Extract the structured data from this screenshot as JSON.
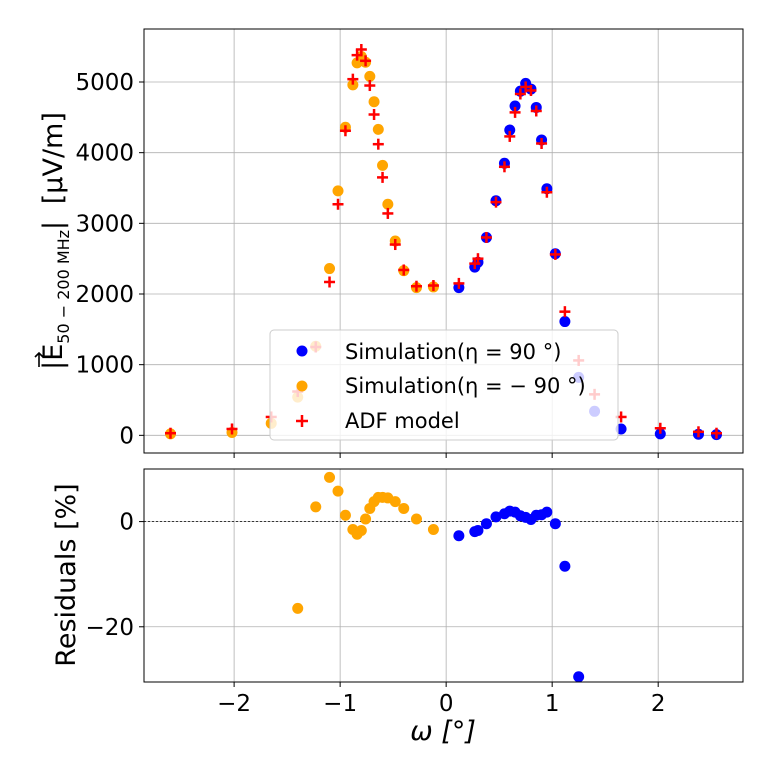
{
  "chart_data": [
    {
      "type": "scatter",
      "panel": "main",
      "xlabel": "ω [°]",
      "ylabel": "|E⃗50 − 200 MHz| [μV/m]",
      "ylabel_parts": {
        "open": "|",
        "symbol": "E",
        "subscript": "50 − 200 MHz",
        "close": "|",
        "unit": "[μV/m]"
      },
      "xlim": [
        -2.85,
        2.8
      ],
      "ylim": [
        -250,
        5750
      ],
      "xticks": [
        -2,
        -1,
        0,
        1,
        2
      ],
      "xtick_labels": [
        "−2",
        "−1",
        "0",
        "1",
        "2"
      ],
      "yticks": [
        0,
        1000,
        2000,
        3000,
        4000,
        5000
      ],
      "ytick_labels": [
        "0",
        "1000",
        "2000",
        "3000",
        "4000",
        "5000"
      ],
      "grid": true,
      "legend_position": "center-right",
      "series": [
        {
          "name": "Simulation(η = 90°)",
          "legend_label": "Simulation(η = 90 °)",
          "marker": "circle",
          "color": "#0000ff",
          "x": [
            0.12,
            0.27,
            0.3,
            0.38,
            0.47,
            0.55,
            0.6,
            0.65,
            0.7,
            0.75,
            0.8,
            0.85,
            0.9,
            0.95,
            1.03,
            1.12,
            1.25,
            1.4,
            1.65,
            2.02,
            2.38,
            2.55
          ],
          "y": [
            2090,
            2380,
            2450,
            2800,
            3320,
            3850,
            4320,
            4660,
            4870,
            4980,
            4900,
            4640,
            4180,
            3490,
            2570,
            1610,
            820,
            340,
            90,
            20,
            15,
            10
          ]
        },
        {
          "name": "Simulation(η = −90°)",
          "legend_label": "Simulation(η = − 90 °)",
          "marker": "circle",
          "color": "#ffa500",
          "x": [
            -2.6,
            -2.02,
            -1.65,
            -1.4,
            -1.23,
            -1.1,
            -1.02,
            -0.95,
            -0.88,
            -0.84,
            -0.8,
            -0.76,
            -0.72,
            -0.68,
            -0.64,
            -0.6,
            -0.55,
            -0.48,
            -0.4,
            -0.28,
            -0.12
          ],
          "y": [
            20,
            40,
            170,
            540,
            1260,
            2360,
            3460,
            4360,
            4960,
            5270,
            5360,
            5280,
            5080,
            4720,
            4330,
            3820,
            3270,
            2750,
            2330,
            2090,
            2100
          ]
        },
        {
          "name": "ADF model",
          "legend_label": "ADF model",
          "marker": "plus",
          "color": "#ff0000",
          "x": [
            -2.6,
            -2.02,
            -1.65,
            -1.4,
            -1.23,
            -1.1,
            -1.02,
            -0.95,
            -0.88,
            -0.84,
            -0.8,
            -0.76,
            -0.72,
            -0.68,
            -0.64,
            -0.6,
            -0.55,
            -0.48,
            -0.4,
            -0.28,
            -0.12,
            0.12,
            0.27,
            0.3,
            0.38,
            0.47,
            0.55,
            0.6,
            0.65,
            0.7,
            0.75,
            0.8,
            0.85,
            0.9,
            0.95,
            1.03,
            1.12,
            1.25,
            1.4,
            1.65,
            2.02,
            2.38,
            2.55
          ],
          "y": [
            30,
            90,
            260,
            620,
            1250,
            2170,
            3270,
            4310,
            5040,
            5380,
            5460,
            5300,
            4950,
            4540,
            4120,
            3650,
            3140,
            2700,
            2340,
            2110,
            2120,
            2150,
            2430,
            2500,
            2800,
            3300,
            3800,
            4230,
            4570,
            4830,
            4930,
            4880,
            4590,
            4130,
            3440,
            2560,
            1750,
            1060,
            580,
            260,
            100,
            50,
            30
          ]
        }
      ]
    },
    {
      "type": "scatter",
      "panel": "residuals",
      "xlabel": "ω [°]",
      "ylabel": "Residuals [%]",
      "xlim": [
        -2.85,
        2.8
      ],
      "ylim": [
        -30.5,
        10
      ],
      "xticks": [
        -2,
        -1,
        0,
        1,
        2
      ],
      "xtick_labels": [
        "−2",
        "−1",
        "0",
        "1",
        "2"
      ],
      "yticks": [
        -20,
        0
      ],
      "ytick_labels": [
        "−20",
        "0"
      ],
      "grid": true,
      "reference_line_y": 0,
      "series": [
        {
          "name": "Simulation(η = 90°)",
          "marker": "circle",
          "color": "#0000ff",
          "x": [
            0.12,
            0.27,
            0.3,
            0.38,
            0.47,
            0.55,
            0.6,
            0.65,
            0.7,
            0.75,
            0.8,
            0.85,
            0.9,
            0.95,
            1.03,
            1.12,
            1.25
          ],
          "y": [
            -2.7,
            -1.9,
            -1.7,
            -0.4,
            0.9,
            1.5,
            2.0,
            1.8,
            1.1,
            0.8,
            0.4,
            1.2,
            1.3,
            1.8,
            -0.4,
            -8.5,
            -29.5
          ]
        },
        {
          "name": "Simulation(η = −90°)",
          "marker": "circle",
          "color": "#ffa500",
          "x": [
            -1.4,
            -1.23,
            -1.1,
            -1.02,
            -0.95,
            -0.88,
            -0.84,
            -0.8,
            -0.76,
            -0.72,
            -0.68,
            -0.64,
            -0.6,
            -0.55,
            -0.48,
            -0.4,
            -0.28,
            -0.12
          ],
          "y": [
            -16.5,
            2.8,
            8.4,
            5.8,
            1.2,
            -1.5,
            -2.4,
            -1.7,
            0.5,
            2.5,
            3.8,
            4.6,
            4.6,
            4.5,
            3.8,
            2.5,
            0.5,
            -1.5
          ]
        }
      ]
    }
  ]
}
